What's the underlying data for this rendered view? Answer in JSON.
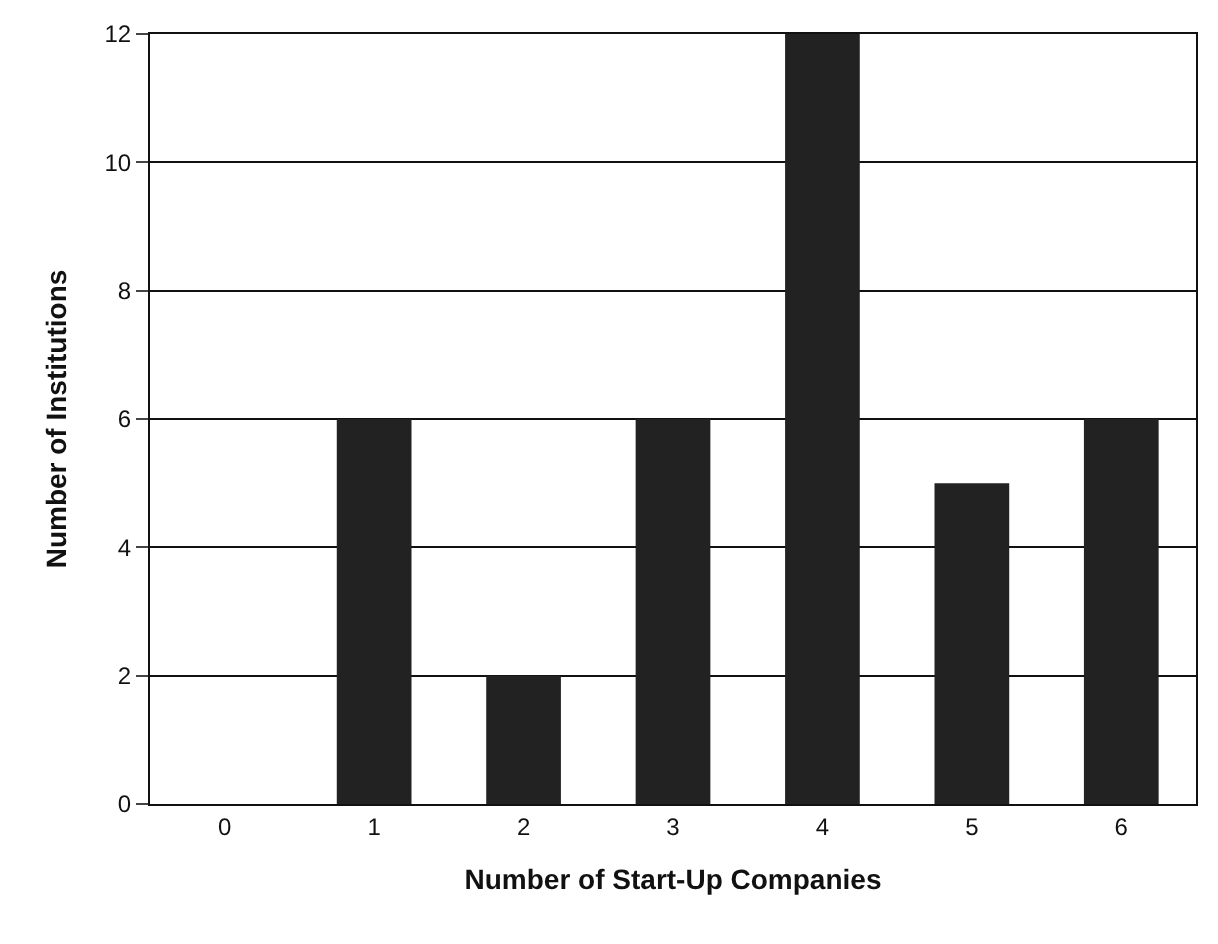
{
  "chart_data": {
    "type": "bar",
    "xlabel": "Number of Start-Up Companies",
    "ylabel": "Number of Institutions",
    "categories": [
      "0",
      "1",
      "2",
      "3",
      "4",
      "5",
      "6"
    ],
    "values": [
      0,
      6,
      2,
      6,
      12,
      5,
      6
    ],
    "color": "#222222",
    "ylim": [
      0,
      12
    ],
    "yticks": [
      0,
      2,
      4,
      6,
      8,
      10,
      12
    ],
    "grid": "y",
    "legend": false
  }
}
